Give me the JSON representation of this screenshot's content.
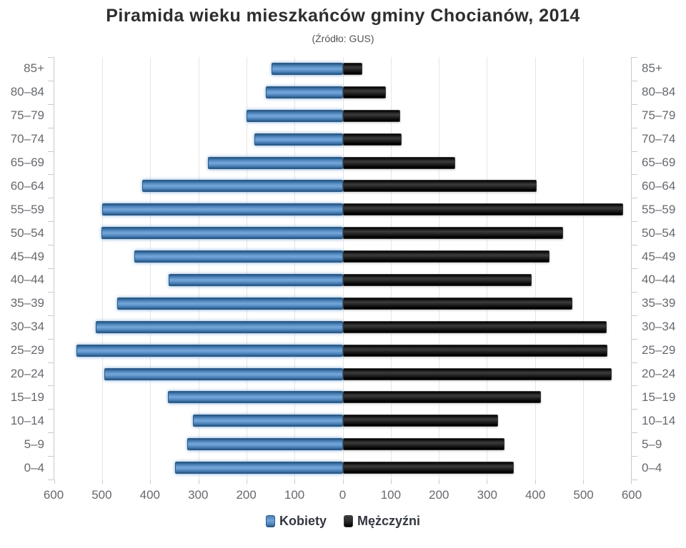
{
  "title": "Piramida wieku mieszkańców gminy Chocianów, 2014",
  "subtitle": "(Źródło: GUS)",
  "legend": {
    "women": "Kobiety",
    "men": "Mężczyźni"
  },
  "colors": {
    "women_bar_light": "#71a3d6",
    "women_bar_mid": "#4b82ba",
    "women_bar_dark": "#27547e",
    "men_bar_light": "#3b3b3b",
    "men_bar_mid": "#2e2e2e",
    "men_bar_dark": "#000000",
    "grid": "#e6e6e6",
    "axis": "#c9c9c9",
    "label_text": "#66696e",
    "title_text": "#2e2e2e"
  },
  "chart_data": {
    "type": "bar",
    "variant": "population-pyramid",
    "title": "Piramida wieku mieszkańców gminy Chocianów, 2014",
    "subtitle": "(Źródło: GUS)",
    "categories": [
      "85+",
      "80–84",
      "75–79",
      "70–74",
      "65–69",
      "60–64",
      "55–59",
      "50–54",
      "45–49",
      "40–44",
      "35–39",
      "30–34",
      "25–29",
      "20–24",
      "15–19",
      "10–14",
      "5–9",
      "0–4"
    ],
    "series": [
      {
        "name": "Kobiety",
        "side": "left",
        "values": [
          147,
          160,
          199,
          183,
          280,
          416,
          499,
          501,
          433,
          362,
          468,
          513,
          552,
          495,
          363,
          311,
          322,
          348
        ]
      },
      {
        "name": "Mężczyźni",
        "side": "right",
        "values": [
          40,
          90,
          119,
          122,
          234,
          403,
          582,
          457,
          430,
          392,
          477,
          548,
          550,
          558,
          411,
          323,
          336,
          355
        ]
      }
    ],
    "axis_max": 600,
    "tick_interval": 100,
    "tick_labels": [
      "600",
      "500",
      "400",
      "300",
      "200",
      "100",
      "0",
      "100",
      "200",
      "300",
      "400",
      "500",
      "600"
    ],
    "grid": true,
    "legend_position": "bottom"
  }
}
